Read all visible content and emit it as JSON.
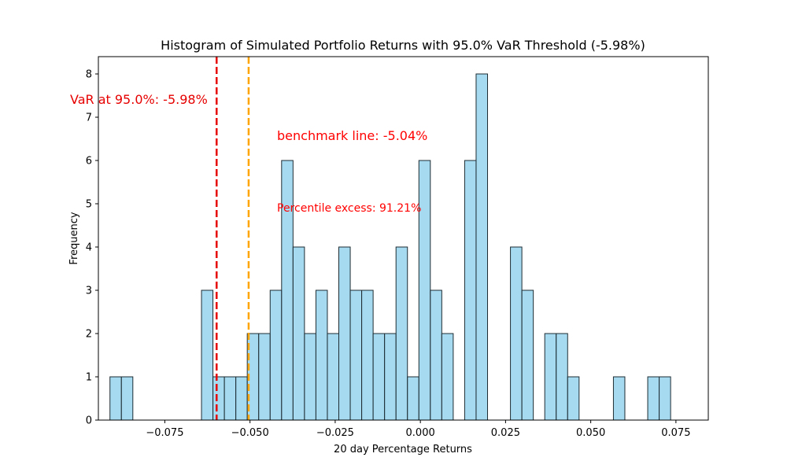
{
  "chart_data": {
    "type": "bar",
    "title": "Histogram of Simulated Portfolio Returns with 95.0% VaR Threshold (-5.98%)",
    "xlabel": "20 day Percentage Returns",
    "ylabel": "Frequency",
    "xlim": [
      -0.0945,
      0.0845
    ],
    "ylim": [
      0,
      8.4
    ],
    "xticks": [
      -0.075,
      -0.05,
      -0.025,
      0.0,
      0.025,
      0.05,
      0.075
    ],
    "xtick_labels": [
      "−0.075",
      "−0.050",
      "−0.025",
      "0.000",
      "0.025",
      "0.050",
      "0.075"
    ],
    "yticks": [
      0,
      1,
      2,
      3,
      4,
      5,
      6,
      7,
      8
    ],
    "yticks_labels": [
      "0",
      "1",
      "2",
      "3",
      "4",
      "5",
      "6",
      "7",
      "8"
    ],
    "bins": {
      "start": -0.0911,
      "width": 0.003358,
      "counts": [
        1,
        1,
        0,
        0,
        0,
        0,
        0,
        0,
        3,
        1,
        1,
        1,
        2,
        2,
        3,
        6,
        4,
        2,
        3,
        2,
        4,
        3,
        3,
        2,
        2,
        4,
        1,
        6,
        3,
        2,
        0,
        6,
        8,
        0,
        0,
        4,
        3,
        0,
        2,
        2,
        1,
        0,
        0,
        0,
        1,
        0,
        0,
        1,
        1
      ]
    },
    "bar_color": "#87CEEB",
    "bar_edge_color": "#1f2d33",
    "var_line": {
      "x": -0.0598,
      "color": "#e60000",
      "label": "VaR at 95.0%: -5.98%"
    },
    "benchmark_line": {
      "x": -0.0504,
      "color": "#ffa500",
      "label": "benchmark line: -5.04%"
    },
    "annotation": {
      "text": "Percentile excess: 91.21%",
      "color": "#ff0000"
    }
  }
}
